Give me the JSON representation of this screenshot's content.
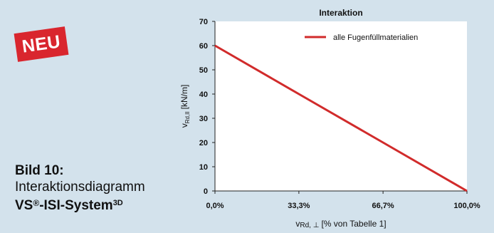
{
  "badge": {
    "text": "NEU"
  },
  "caption": {
    "label": "Bild 10:",
    "description": "Interaktionsdiagramm",
    "system_prefix": "VS",
    "system_reg": "®",
    "system_suffix": "-ISI-System",
    "system_sup": "3D"
  },
  "colors": {
    "background": "#d3e2ec",
    "plot_background": "#ffffff",
    "series_line": "#d12b2b",
    "badge": "#d9262e"
  },
  "chart_data": {
    "type": "line",
    "title": "Interaktion",
    "ylabel_main": "v",
    "ylabel_sub": "Rd,II",
    "ylabel_unit": "[kN/m]",
    "xlabel_main": "v",
    "xlabel_sub": "Rd, ⊥",
    "xlabel_unit": "[% von Tabelle 1]",
    "xlim": [
      0,
      100
    ],
    "ylim": [
      0,
      70
    ],
    "x_ticks": [
      0,
      33.3,
      66.7,
      100
    ],
    "x_tick_labels": [
      "0,0%",
      "33,3%",
      "66,7%",
      "100,0%"
    ],
    "y_ticks": [
      0,
      10,
      20,
      30,
      40,
      50,
      60,
      70
    ],
    "y_tick_labels": [
      "0",
      "10",
      "20",
      "30",
      "40",
      "50",
      "60",
      "70"
    ],
    "grid": false,
    "legend_position": "top-right",
    "series": [
      {
        "name": "alle Fugenfüllmaterialien",
        "x": [
          0,
          33.3,
          66.7,
          100
        ],
        "y": [
          60,
          40,
          20,
          0
        ]
      }
    ]
  }
}
